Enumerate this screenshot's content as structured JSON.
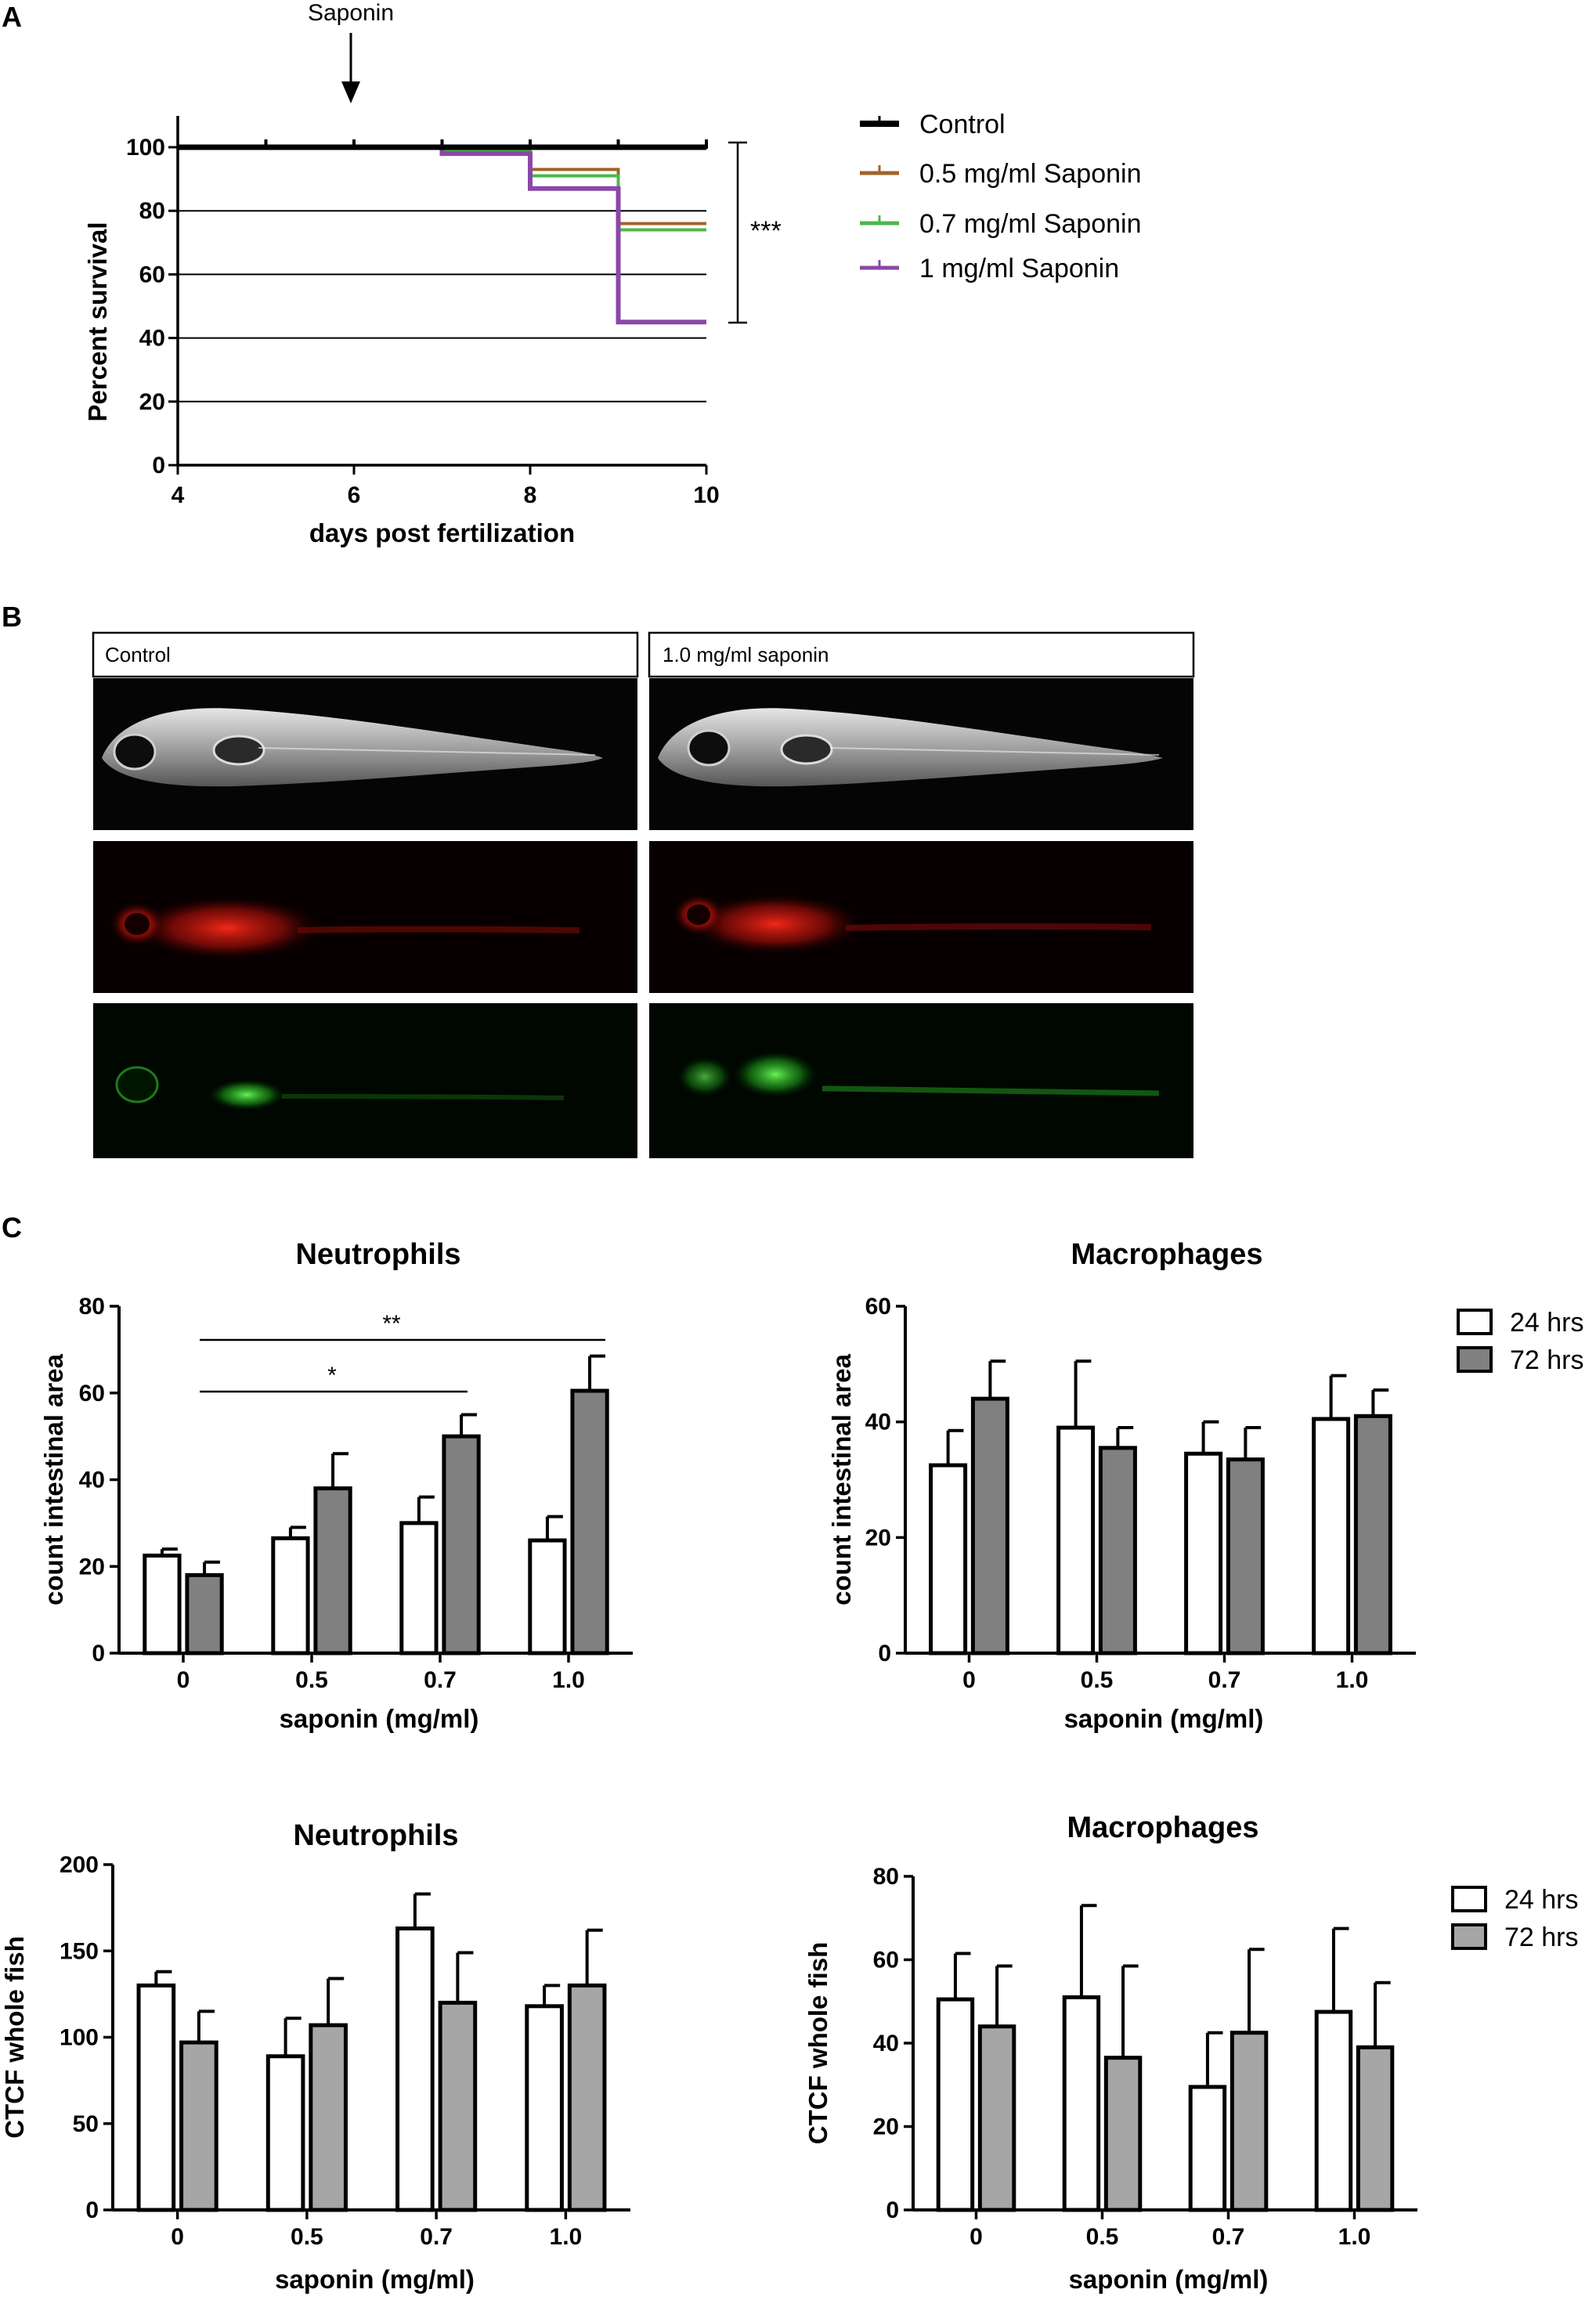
{
  "panels": {
    "a": "A",
    "b": "B",
    "c": "C"
  },
  "annotations": {
    "saponin_arrow": "Saponin",
    "survival_sig": "***",
    "neut_sig_double": "**",
    "neut_sig_single": "*"
  },
  "images": {
    "control_label": "Control",
    "saponin_label": "1.0 mg/ml saponin",
    "rows": [
      "brightfield",
      "red fluorescence",
      "green fluorescence"
    ]
  },
  "colors": {
    "control": "#000000",
    "s05": "#a0642a",
    "s07": "#4ab84a",
    "s1": "#8a48a8",
    "hrs24": "#ffffff",
    "hrs72_count": "#808080",
    "hrs72_ctcf": "#a6a6a6"
  },
  "chart_data": [
    {
      "type": "line",
      "subtype": "kaplan-meier",
      "xlabel": "days post fertilization",
      "ylabel": "Percent survival",
      "xlim": [
        4,
        10
      ],
      "ylim": [
        0,
        100
      ],
      "xticks": [
        4,
        6,
        8,
        10
      ],
      "yticks": [
        0,
        20,
        40,
        60,
        80,
        100
      ],
      "grid": "horizontal",
      "legend": "right",
      "series": [
        {
          "name": "Control",
          "x": [
            4,
            10
          ],
          "y": [
            100,
            100
          ]
        },
        {
          "name": "0.5 mg/ml Saponin",
          "x": [
            4,
            7,
            8,
            9,
            10
          ],
          "y": [
            100,
            99,
            93,
            76,
            76
          ]
        },
        {
          "name": "0.7 mg/ml Saponin",
          "x": [
            4,
            7,
            8,
            9,
            10
          ],
          "y": [
            100,
            99,
            91,
            74,
            74
          ]
        },
        {
          "name": "1 mg/ml Saponin",
          "x": [
            4,
            7,
            8,
            9,
            10
          ],
          "y": [
            100,
            98,
            87,
            45,
            45
          ]
        }
      ]
    },
    {
      "type": "bar",
      "title": "Neutrophils",
      "xlabel": "saponin (mg/ml)",
      "ylabel": "count intestinal area",
      "categories": [
        "0",
        "0.5",
        "0.7",
        "1.0"
      ],
      "ylim": [
        0,
        80
      ],
      "yticks": [
        0,
        20,
        40,
        60,
        80
      ],
      "series": [
        {
          "name": "24 hrs",
          "values": [
            22.5,
            26.5,
            30,
            26
          ],
          "errors": [
            1.5,
            2.5,
            6,
            5.5
          ]
        },
        {
          "name": "72 hrs",
          "values": [
            18,
            38,
            50,
            60.5
          ],
          "errors": [
            3,
            8,
            5,
            8
          ]
        }
      ]
    },
    {
      "type": "bar",
      "title": "Macrophages",
      "xlabel": "saponin (mg/ml)",
      "ylabel": "count intestinal area",
      "categories": [
        "0",
        "0.5",
        "0.7",
        "1.0"
      ],
      "ylim": [
        0,
        60
      ],
      "yticks": [
        0,
        20,
        40,
        60
      ],
      "legend": "top-right",
      "series": [
        {
          "name": "24 hrs",
          "values": [
            32.5,
            39,
            34.5,
            40.5
          ],
          "errors": [
            6,
            11.5,
            5.5,
            7.5
          ]
        },
        {
          "name": "72 hrs",
          "values": [
            44,
            35.5,
            33.5,
            41
          ],
          "errors": [
            6.5,
            3.5,
            5.5,
            4.5
          ]
        }
      ]
    },
    {
      "type": "bar",
      "title": "Neutrophils",
      "xlabel": "saponin (mg/ml)",
      "ylabel": "CTCF whole fish",
      "categories": [
        "0",
        "0.5",
        "0.7",
        "1.0"
      ],
      "ylim": [
        0,
        200
      ],
      "yticks": [
        0,
        50,
        100,
        150,
        200
      ],
      "series": [
        {
          "name": "24 hrs",
          "values": [
            130,
            89,
            163,
            118
          ],
          "errors": [
            8,
            22,
            20,
            12
          ]
        },
        {
          "name": "72 hrs",
          "values": [
            97,
            107,
            120,
            130
          ],
          "errors": [
            18,
            27,
            29,
            32
          ]
        }
      ]
    },
    {
      "type": "bar",
      "title": "Macrophages",
      "xlabel": "saponin (mg/ml)",
      "ylabel": "CTCF whole fish",
      "categories": [
        "0",
        "0.5",
        "0.7",
        "1.0"
      ],
      "ylim": [
        0,
        80
      ],
      "yticks": [
        0,
        20,
        40,
        60,
        80
      ],
      "legend": "top-right",
      "series": [
        {
          "name": "24 hrs",
          "values": [
            50.5,
            51,
            29.5,
            47.5
          ],
          "errors": [
            11,
            22,
            13,
            20
          ]
        },
        {
          "name": "72 hrs",
          "values": [
            44,
            36.5,
            42.5,
            39
          ],
          "errors": [
            14.5,
            22,
            20,
            15.5
          ]
        }
      ]
    }
  ]
}
